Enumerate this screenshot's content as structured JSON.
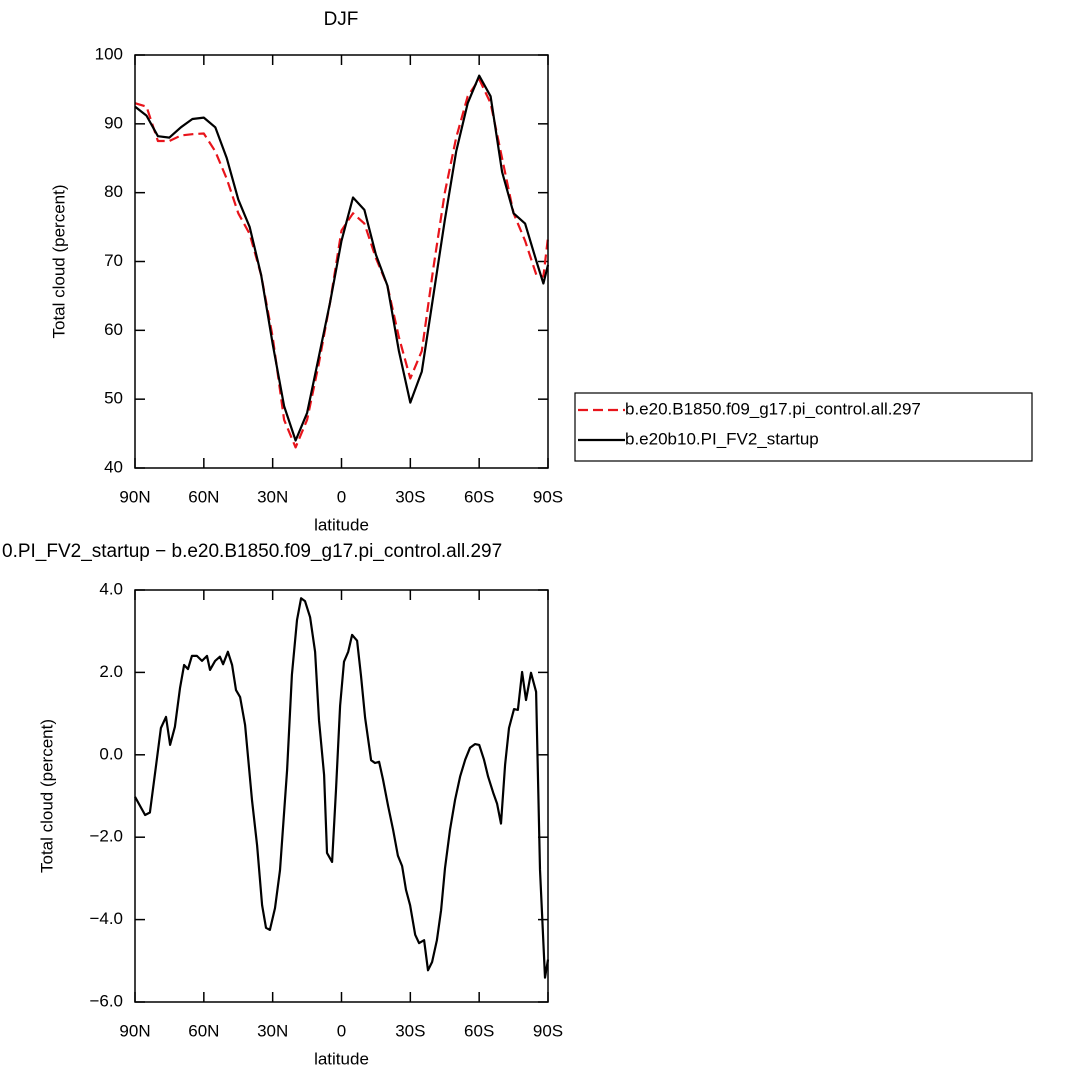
{
  "chart_data": [
    {
      "type": "line",
      "title": "DJF",
      "xlabel": "latitude",
      "ylabel": "Total cloud (percent)",
      "x": [
        90,
        85,
        80,
        75,
        70,
        65,
        60,
        55,
        50,
        45,
        40,
        35,
        30,
        25,
        20,
        15,
        10,
        5,
        0,
        -5,
        -10,
        -15,
        -20,
        -25,
        -30,
        -35,
        -40,
        -45,
        -50,
        -55,
        -60,
        -65,
        -70,
        -75,
        -80,
        -85,
        -88,
        -90
      ],
      "series": [
        {
          "name": "b.e20.B1850.f09_g17.pi_control.all.297",
          "color": "#e8141b",
          "dash": true,
          "values": [
            93,
            92.5,
            87.5,
            87.5,
            88.3,
            88.5,
            88.6,
            86,
            82,
            77,
            74,
            68,
            59,
            47,
            43,
            47,
            55,
            64,
            74.5,
            77,
            75.5,
            70.5,
            66.5,
            59,
            53,
            57,
            69,
            80,
            88,
            94,
            96.5,
            93,
            85,
            77,
            73,
            68,
            67.8,
            73.5
          ]
        },
        {
          "name": "b.e20b10.PI_FV2_startup",
          "color": "#000000",
          "dash": false,
          "values": [
            92.5,
            91.2,
            88.2,
            88,
            89.5,
            90.7,
            90.9,
            89.5,
            85,
            79,
            75,
            68,
            58,
            49,
            44,
            48,
            56,
            64,
            73,
            79.3,
            77.5,
            71,
            66.5,
            57,
            49.5,
            54,
            65,
            76,
            86,
            93,
            97,
            94,
            83,
            77,
            75.5,
            70,
            66.8,
            69.5
          ]
        }
      ],
      "xlim": [
        90,
        -90
      ],
      "ylim": [
        40,
        100
      ],
      "xticks": [
        {
          "value": 90,
          "label": "90N"
        },
        {
          "value": 60,
          "label": "60N"
        },
        {
          "value": 30,
          "label": "30N"
        },
        0,
        {
          "value": -30,
          "label": "30S"
        },
        {
          "value": -60,
          "label": "60S"
        },
        {
          "value": -90,
          "label": "90S"
        }
      ],
      "yticks": [
        40,
        50,
        60,
        70,
        80,
        90,
        100
      ],
      "legend": "right"
    },
    {
      "type": "line",
      "title": "0.PI_FV2_startup − b.e20.B1850.f09_g17.pi_control.all.297",
      "xlabel": "latitude",
      "ylabel": "Total cloud (percent)",
      "x": [
        90,
        85.6,
        83.5,
        80.8,
        78.7,
        76.5,
        74.7,
        72.6,
        70.4,
        68.6,
        66.9,
        65.2,
        63,
        60.8,
        58.6,
        57.3,
        55.1,
        53,
        51.6,
        49.5,
        47.7,
        46,
        44.2,
        42,
        39,
        36.8,
        34.6,
        32.9,
        31.2,
        29,
        26.8,
        23.7,
        21.6,
        19.4,
        17.6,
        15.9,
        13.7,
        11.5,
        9.8,
        7.6,
        6.3,
        4.1,
        2.4,
        0.6,
        -1.1,
        -2.9,
        -4.6,
        -6.8,
        -8.5,
        -10.3,
        -12.9,
        -14.6,
        -16.4,
        -18.1,
        -20.3,
        -22.5,
        -24.6,
        -26.4,
        -28.1,
        -29.9,
        -32.1,
        -33.8,
        -36,
        -37.7,
        -39.5,
        -41.6,
        -43.4,
        -45.1,
        -47.3,
        -49.5,
        -51.7,
        -53.9,
        -56,
        -58.2,
        -60,
        -62.1,
        -63.9,
        -66.1,
        -67.8,
        -69.5,
        -71.3,
        -73,
        -75.2,
        -76.9,
        -78.7,
        -80.4,
        -82.6,
        -84.8,
        -86.5,
        -88.7,
        -90
      ],
      "color": "#000000",
      "values": [
        -1.02,
        -1.46,
        -1.4,
        -0.25,
        0.65,
        0.92,
        0.24,
        0.68,
        1.62,
        2.18,
        2.08,
        2.4,
        2.4,
        2.28,
        2.4,
        2.06,
        2.28,
        2.38,
        2.2,
        2.5,
        2.18,
        1.57,
        1.4,
        0.72,
        -1.1,
        -2.2,
        -3.65,
        -4.2,
        -4.25,
        -3.72,
        -2.8,
        -0.37,
        1.94,
        3.27,
        3.8,
        3.73,
        3.34,
        2.5,
        0.84,
        -0.49,
        -2.38,
        -2.6,
        -0.85,
        1.19,
        2.26,
        2.5,
        2.91,
        2.77,
        1.92,
        0.9,
        -0.13,
        -0.2,
        -0.17,
        -0.6,
        -1.24,
        -1.82,
        -2.45,
        -2.7,
        -3.28,
        -3.65,
        -4.37,
        -4.57,
        -4.5,
        -5.23,
        -5.03,
        -4.5,
        -3.77,
        -2.75,
        -1.82,
        -1.09,
        -0.53,
        -0.12,
        0.17,
        0.26,
        0.24,
        -0.12,
        -0.53,
        -0.92,
        -1.19,
        -1.67,
        -0.24,
        0.65,
        1.11,
        1.09,
        2.01,
        1.33,
        1.99,
        1.53,
        -2.79,
        -5.41,
        -4.97
      ],
      "xlim": [
        90,
        -90
      ],
      "ylim": [
        -6,
        4
      ],
      "xticks": [
        {
          "value": 90,
          "label": "90N"
        },
        {
          "value": 60,
          "label": "60N"
        },
        {
          "value": 30,
          "label": "30N"
        },
        0,
        {
          "value": -30,
          "label": "30S"
        },
        {
          "value": -60,
          "label": "60S"
        },
        {
          "value": -90,
          "label": "90S"
        }
      ],
      "yticks": [
        {
          "value": -6,
          "label": "−6.0"
        },
        {
          "value": -4,
          "label": "−4.0"
        },
        {
          "value": -2,
          "label": "−2.0"
        },
        {
          "value": 0,
          "label": "0.0"
        },
        {
          "value": 2,
          "label": "2.0"
        },
        {
          "value": 4,
          "label": "4.0"
        }
      ]
    }
  ]
}
